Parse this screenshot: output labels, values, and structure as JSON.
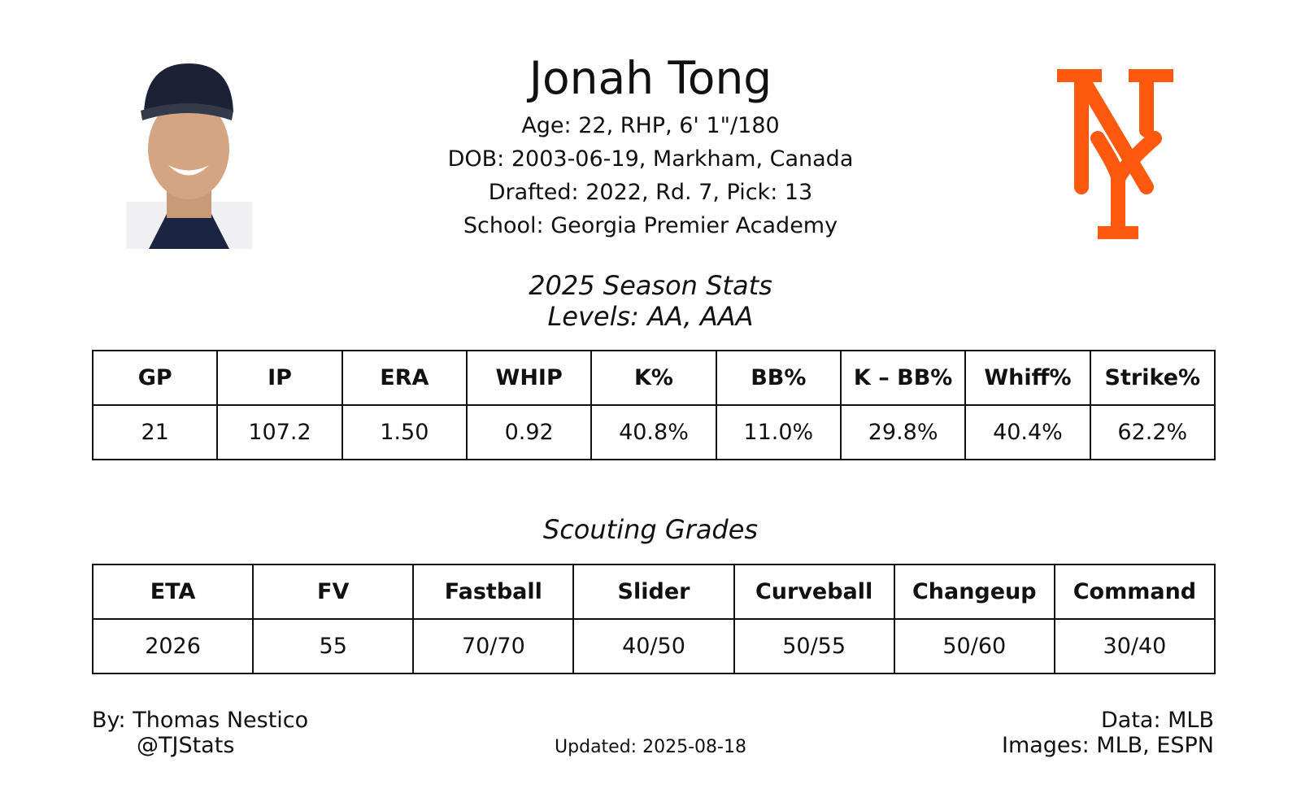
{
  "header": {
    "name": "Jonah Tong",
    "details": [
      "Age: 22, RHP, 6' 1\"/180",
      "DOB: 2003-06-19, Markham, Canada",
      "Drafted: 2022, Rd. 7, Pick: 13",
      "School: Georgia Premier Academy"
    ]
  },
  "stats": {
    "title": "2025 Season Stats",
    "subtitle": "Levels: AA, AAA",
    "headers": [
      "GP",
      "IP",
      "ERA",
      "WHIP",
      "K%",
      "BB%",
      "K – BB%",
      "Whiff%",
      "Strike%"
    ],
    "values": [
      "21",
      "107.2",
      "1.50",
      "0.92",
      "40.8%",
      "11.0%",
      "29.8%",
      "40.4%",
      "62.2%"
    ]
  },
  "grades": {
    "title": "Scouting Grades",
    "headers": [
      "ETA",
      "FV",
      "Fastball",
      "Slider",
      "Curveball",
      "Changeup",
      "Command"
    ],
    "values": [
      "2026",
      "55",
      "70/70",
      "40/50",
      "50/55",
      "50/60",
      "30/40"
    ]
  },
  "footer": {
    "author": "By: Thomas Nestico",
    "handle": "@TJStats",
    "updated": "Updated: 2025-08-18",
    "data": "Data: MLB",
    "images": "Images: MLB, ESPN"
  }
}
